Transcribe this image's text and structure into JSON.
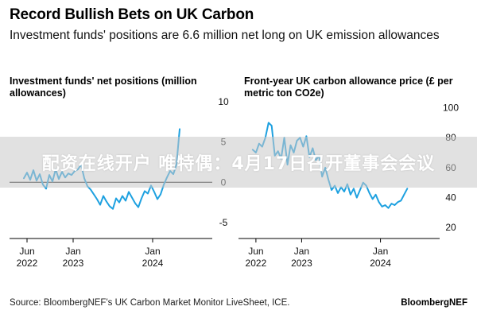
{
  "header": {
    "title": "Record Bullish Bets on UK Carbon",
    "subtitle": "Investment funds' positions are 6.6 million net long on UK emission allowances"
  },
  "footer": {
    "source": "Source: BloombergNEF's UK Carbon Market Monitor LiveSheet, ICE.",
    "brand": "BloombergNEF"
  },
  "overlay": {
    "banner_text": "配资在线开户 唯特偶：4月17日召开董事会会议"
  },
  "colors": {
    "line": "#1ea1e0",
    "zero_line": "#000000",
    "banner": "#c8c8c8"
  },
  "chart_data": [
    {
      "type": "line",
      "title": "Investment funds' net positions (million allowances)",
      "x_ticks": [
        {
          "label": [
            "Jun",
            "2022"
          ],
          "x": 2022.42
        },
        {
          "label": [
            "Jan",
            "2023"
          ],
          "x": 2023.0
        },
        {
          "label": [
            "Jan",
            "2024"
          ],
          "x": 2024.0
        }
      ],
      "y_ticks": [
        10,
        5,
        0,
        -5
      ],
      "xlim": [
        2022.3,
        2024.7
      ],
      "ylim": [
        -6,
        10
      ],
      "zero_line": true,
      "series": [
        {
          "x": [
            2022.38,
            2022.42,
            2022.46,
            2022.5,
            2022.54,
            2022.58,
            2022.62,
            2022.66,
            2022.7,
            2022.74,
            2022.78,
            2022.82,
            2022.86,
            2022.9,
            2022.94,
            2022.98,
            2023.02,
            2023.06,
            2023.1,
            2023.14,
            2023.18,
            2023.22,
            2023.26,
            2023.3,
            2023.34,
            2023.38,
            2023.42,
            2023.46,
            2023.5,
            2023.54,
            2023.58,
            2023.62,
            2023.66,
            2023.7,
            2023.74,
            2023.78,
            2023.82,
            2023.86,
            2023.9,
            2023.94,
            2023.98,
            2024.02,
            2024.06,
            2024.1,
            2024.14,
            2024.18,
            2024.22,
            2024.26,
            2024.3,
            2024.34
          ],
          "values": [
            0.5,
            1.2,
            0.3,
            1.5,
            0.2,
            1.0,
            -0.3,
            -0.8,
            0.9,
            0.1,
            1.6,
            0.4,
            1.3,
            0.6,
            1.1,
            0.9,
            1.4,
            1.6,
            2.2,
            0.5,
            -0.5,
            -0.9,
            -1.5,
            -2.1,
            -2.8,
            -1.7,
            -2.4,
            -3.0,
            -3.3,
            -2.0,
            -2.5,
            -1.7,
            -2.3,
            -1.2,
            -1.9,
            -2.6,
            -3.1,
            -2.0,
            -1.1,
            -1.4,
            -0.4,
            -1.2,
            -2.1,
            -1.5,
            -0.3,
            0.6,
            1.4,
            1.0,
            2.2,
            6.6
          ]
        }
      ]
    },
    {
      "type": "line",
      "title": "Front-year UK carbon allowance price (£ per metric ton CO2e)",
      "x_ticks": [
        {
          "label": [
            "Jun",
            "2022"
          ],
          "x": 2022.42
        },
        {
          "label": [
            "Jan",
            "2023"
          ],
          "x": 2023.0
        },
        {
          "label": [
            "Jan",
            "2024"
          ],
          "x": 2024.0
        }
      ],
      "y_ticks": [
        100,
        80,
        60,
        40,
        20
      ],
      "xlim": [
        2022.3,
        2024.7
      ],
      "ylim": [
        18,
        104
      ],
      "series": [
        {
          "x": [
            2022.38,
            2022.42,
            2022.46,
            2022.5,
            2022.54,
            2022.58,
            2022.62,
            2022.66,
            2022.7,
            2022.74,
            2022.78,
            2022.82,
            2022.86,
            2022.9,
            2022.94,
            2022.98,
            2023.02,
            2023.06,
            2023.1,
            2023.14,
            2023.18,
            2023.22,
            2023.26,
            2023.3,
            2023.34,
            2023.38,
            2023.42,
            2023.46,
            2023.5,
            2023.54,
            2023.58,
            2023.62,
            2023.66,
            2023.7,
            2023.74,
            2023.78,
            2023.82,
            2023.86,
            2023.9,
            2023.94,
            2023.98,
            2024.02,
            2024.06,
            2024.1,
            2024.14,
            2024.18,
            2024.22,
            2024.26,
            2024.3,
            2024.34
          ],
          "values": [
            72,
            70,
            76,
            74,
            80,
            90,
            88,
            68,
            71,
            66,
            80,
            62,
            75,
            70,
            78,
            80,
            74,
            81,
            67,
            73,
            65,
            68,
            54,
            60,
            52,
            45,
            48,
            43,
            47,
            44,
            49,
            42,
            46,
            40,
            45,
            50,
            48,
            43,
            39,
            42,
            37,
            34,
            35,
            33,
            36,
            35,
            37,
            38,
            42,
            46
          ]
        }
      ]
    }
  ]
}
